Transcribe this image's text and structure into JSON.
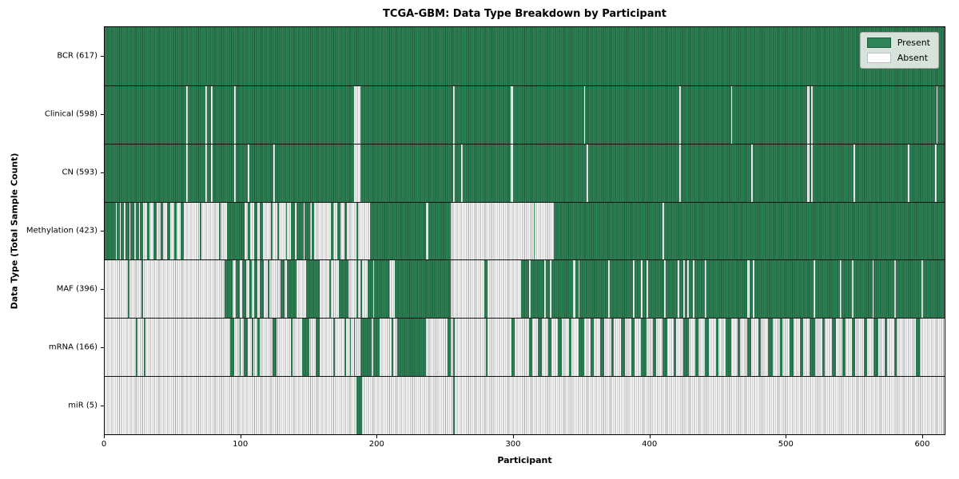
{
  "title": "TCGA-GBM: Data Type Breakdown by Participant",
  "xlabel": "Participant",
  "ylabel": "Data Type (Total Sample Count)",
  "legend": {
    "present_label": "Present",
    "absent_label": "Absent"
  },
  "colors": {
    "present": "#2f8457",
    "present_edge": "#1d5a3a",
    "absent": "#fdfdfd",
    "absent_edge": "#a6a6a6",
    "frame": "#000000",
    "legend_bg": "#eaeeea"
  },
  "chart_data": {
    "type": "heatmap",
    "title": "TCGA-GBM: Data Type Breakdown by Participant",
    "xlabel": "Participant",
    "ylabel": "Data Type (Total Sample Count)",
    "xlim": [
      0,
      617
    ],
    "x_ticks": [
      0,
      100,
      200,
      300,
      400,
      500,
      600
    ],
    "grid": false,
    "legend_position": "upper right",
    "legend_entries": [
      "Present",
      "Absent"
    ],
    "n_participants": 617,
    "rows": [
      {
        "name": "BCR",
        "label": "BCR (617)",
        "total": 617,
        "present_runs": [
          [
            0,
            617
          ]
        ]
      },
      {
        "name": "Clinical",
        "label": "Clinical (598)",
        "total": 598,
        "absent_runs": [
          [
            60,
            61
          ],
          [
            74,
            75
          ],
          [
            78,
            79
          ],
          [
            95,
            96
          ],
          [
            183,
            188
          ],
          [
            256,
            257
          ],
          [
            298,
            300
          ],
          [
            352,
            353
          ],
          [
            422,
            423
          ],
          [
            460,
            461
          ],
          [
            516,
            518
          ],
          [
            519,
            520
          ],
          [
            611,
            612
          ]
        ]
      },
      {
        "name": "CN",
        "label": "CN (593)",
        "total": 593,
        "absent_runs": [
          [
            60,
            61
          ],
          [
            74,
            75
          ],
          [
            78,
            79
          ],
          [
            95,
            96
          ],
          [
            105,
            106
          ],
          [
            124,
            125
          ],
          [
            183,
            188
          ],
          [
            256,
            257
          ],
          [
            262,
            263
          ],
          [
            298,
            300
          ],
          [
            354,
            355
          ],
          [
            422,
            423
          ],
          [
            475,
            476
          ],
          [
            516,
            518
          ],
          [
            519,
            520
          ],
          [
            550,
            551
          ],
          [
            590,
            591
          ],
          [
            610,
            611
          ]
        ]
      },
      {
        "name": "Methylation",
        "label": "Methylation (423)",
        "total": 423,
        "present_runs": [
          [
            0,
            8
          ],
          [
            9,
            11
          ],
          [
            12,
            14
          ],
          [
            15,
            18
          ],
          [
            19,
            22
          ],
          [
            23,
            25
          ],
          [
            26,
            28
          ],
          [
            31,
            33
          ],
          [
            36,
            38
          ],
          [
            41,
            43
          ],
          [
            46,
            48
          ],
          [
            51,
            53
          ],
          [
            56,
            58
          ],
          [
            70,
            71
          ],
          [
            84,
            85
          ],
          [
            90,
            103
          ],
          [
            105,
            107
          ],
          [
            110,
            112
          ],
          [
            114,
            116
          ],
          [
            122,
            123
          ],
          [
            127,
            128
          ],
          [
            133,
            134
          ],
          [
            137,
            140
          ],
          [
            141,
            146
          ],
          [
            147,
            151
          ],
          [
            152,
            154
          ],
          [
            166,
            168
          ],
          [
            171,
            173
          ],
          [
            176,
            178
          ],
          [
            185,
            186
          ],
          [
            195,
            236
          ],
          [
            238,
            254
          ],
          [
            315,
            316
          ],
          [
            330,
            410
          ],
          [
            411,
            617
          ]
        ]
      },
      {
        "name": "MAF",
        "label": "MAF (396)",
        "total": 396,
        "present_runs": [
          [
            17,
            18
          ],
          [
            27,
            28
          ],
          [
            88,
            94
          ],
          [
            96,
            99
          ],
          [
            101,
            104
          ],
          [
            106,
            108
          ],
          [
            110,
            112
          ],
          [
            114,
            117
          ],
          [
            120,
            121
          ],
          [
            129,
            132
          ],
          [
            134,
            141
          ],
          [
            148,
            158
          ],
          [
            165,
            166
          ],
          [
            172,
            179
          ],
          [
            185,
            186
          ],
          [
            188,
            189
          ],
          [
            193,
            197
          ],
          [
            198,
            209
          ],
          [
            213,
            254
          ],
          [
            279,
            281
          ],
          [
            306,
            312
          ],
          [
            313,
            323
          ],
          [
            324,
            327
          ],
          [
            328,
            344
          ],
          [
            346,
            348
          ],
          [
            349,
            370
          ],
          [
            371,
            388
          ],
          [
            389,
            394
          ],
          [
            395,
            398
          ],
          [
            399,
            411
          ],
          [
            412,
            421
          ],
          [
            422,
            425
          ],
          [
            426,
            428
          ],
          [
            429,
            432
          ],
          [
            433,
            441
          ],
          [
            442,
            472
          ],
          [
            474,
            476
          ],
          [
            477,
            521
          ],
          [
            522,
            540
          ],
          [
            541,
            549
          ],
          [
            550,
            564
          ],
          [
            565,
            580
          ],
          [
            581,
            600
          ],
          [
            601,
            617
          ]
        ]
      },
      {
        "name": "mRNA",
        "label": "mRNA (166)",
        "total": 166,
        "present_runs": [
          [
            23,
            24
          ],
          [
            29,
            30
          ],
          [
            92,
            95
          ],
          [
            99,
            100
          ],
          [
            102,
            105
          ],
          [
            108,
            109
          ],
          [
            112,
            114
          ],
          [
            123,
            126
          ],
          [
            137,
            138
          ],
          [
            145,
            150
          ],
          [
            155,
            158
          ],
          [
            168,
            169
          ],
          [
            176,
            177
          ],
          [
            180,
            181
          ],
          [
            183,
            184
          ],
          [
            188,
            196
          ],
          [
            197,
            202
          ],
          [
            211,
            212
          ],
          [
            215,
            236
          ],
          [
            252,
            254
          ],
          [
            256,
            257
          ],
          [
            280,
            281
          ],
          [
            299,
            301
          ],
          [
            312,
            314
          ],
          [
            318,
            321
          ],
          [
            326,
            328
          ],
          [
            333,
            336
          ],
          [
            341,
            343
          ],
          [
            348,
            352
          ],
          [
            357,
            359
          ],
          [
            364,
            367
          ],
          [
            372,
            374
          ],
          [
            379,
            382
          ],
          [
            387,
            389
          ],
          [
            394,
            398
          ],
          [
            403,
            405
          ],
          [
            410,
            413
          ],
          [
            418,
            420
          ],
          [
            425,
            429
          ],
          [
            434,
            436
          ],
          [
            441,
            444
          ],
          [
            449,
            451
          ],
          [
            456,
            460
          ],
          [
            465,
            467
          ],
          [
            472,
            475
          ],
          [
            480,
            482
          ],
          [
            487,
            491
          ],
          [
            496,
            498
          ],
          [
            503,
            506
          ],
          [
            511,
            513
          ],
          [
            518,
            522
          ],
          [
            527,
            529
          ],
          [
            534,
            537
          ],
          [
            542,
            544
          ],
          [
            549,
            551
          ],
          [
            558,
            560
          ],
          [
            565,
            568
          ],
          [
            573,
            575
          ],
          [
            580,
            582
          ],
          [
            596,
            599
          ]
        ]
      },
      {
        "name": "miR",
        "label": "miR (5)",
        "total": 5,
        "present_runs": [
          [
            185,
            189
          ],
          [
            256,
            257
          ]
        ]
      }
    ]
  }
}
